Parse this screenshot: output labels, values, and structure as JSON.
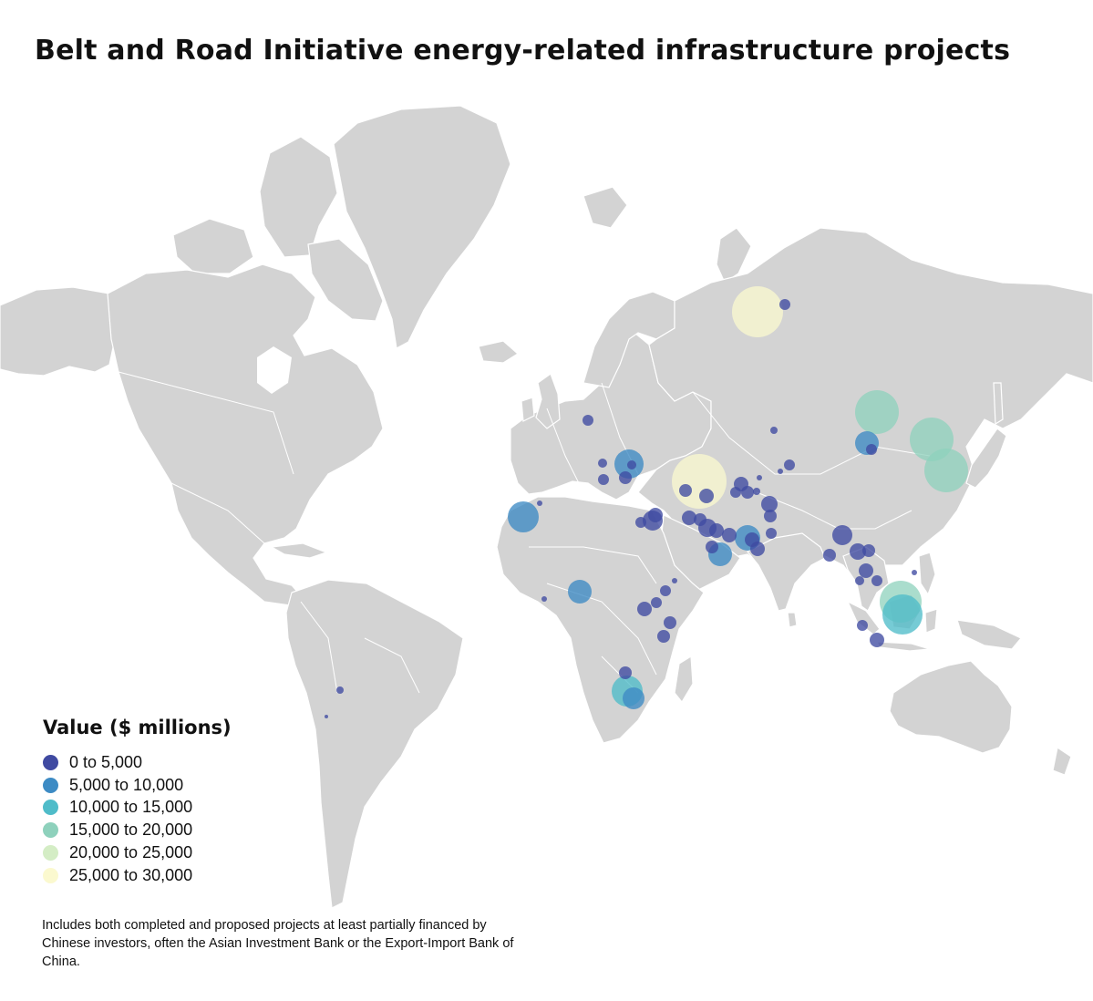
{
  "title": "Belt and Road Initiative energy-related infrastructure projects",
  "legend": {
    "title": "Value ($ millions)",
    "items": [
      {
        "label": "0 to 5,000",
        "color": "#3f4aa1"
      },
      {
        "label": "5,000 to 10,000",
        "color": "#3d8bc4"
      },
      {
        "label": "10,000 to 15,000",
        "color": "#4fbcc9"
      },
      {
        "label": "15,000 to 20,000",
        "color": "#8ed1bc"
      },
      {
        "label": "20,000 to 25,000",
        "color": "#d4edc5"
      },
      {
        "label": "25,000 to 30,000",
        "color": "#fbf9cf"
      }
    ]
  },
  "note": "Includes both completed and proposed projects at least partially financed by Chinese investors, often the Asian Investment Bank or the Export-Import Bank of China."
}
